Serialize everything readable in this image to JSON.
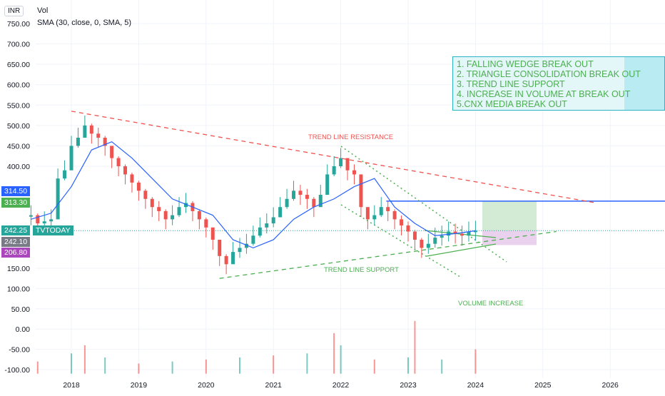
{
  "header": {
    "currency": "INR",
    "volume_label": "Vol",
    "sma_label": "SMA (30, close, 0, SMA, 5)"
  },
  "notes": [
    "1. FALLING WEDGE BREAK OUT",
    "2. TRIANGLE CONSOLIDATION BREAK OUT",
    "3. TREND LINE SUPPORT",
    "4. INCREASE IN VOLUME AT BREAK OUT",
    "5.CNX MEDIA BREAK OUT"
  ],
  "annotations": {
    "resistance": "TREND LINE RESISTANCE",
    "support": "TREND LINE SUPPORT",
    "volume": "VOLUME INCREASE"
  },
  "price_tags": {
    "upper_level": "314.50",
    "target": "313.30",
    "last": "242.25",
    "ticker": "TVTODAY",
    "sma": "242.10",
    "lower": "206.80"
  },
  "colors": {
    "up": "#26a69a",
    "down": "#ef5350",
    "sma": "#2962ff",
    "resistance": "#ef5350",
    "support": "#4caf50",
    "level": "#2962ff",
    "notes_text": "#4caf50",
    "target_zone": "#c8e6c9",
    "stop_zone": "#e1bee7",
    "tag_upper": "#2962ff",
    "tag_target": "#4caf50",
    "tag_last": "#26a69a",
    "tag_sma": "#787b86",
    "tag_lower": "#ab47bc"
  },
  "chart_data": {
    "type": "line",
    "title": "",
    "y_axis": {
      "ticks": [
        "750.00",
        "700.00",
        "650.00",
        "600.00",
        "550.00",
        "500.00",
        "450.00",
        "400.00",
        "150.00",
        "100.00",
        "50.00",
        "0.00",
        "-50.00",
        "-100.00"
      ],
      "range": [
        -110,
        760
      ]
    },
    "x_axis": {
      "ticks": [
        "2018",
        "2019",
        "2020",
        "2021",
        "2022",
        "2023",
        "2024",
        "2025",
        "2026"
      ]
    },
    "series": [
      {
        "style": "candles-close",
        "x": [
          2017.4,
          2017.5,
          2017.6,
          2017.7,
          2017.8,
          2017.9,
          2018.0,
          2018.1,
          2018.2,
          2018.3,
          2018.4,
          2018.5,
          2018.6,
          2018.7,
          2018.8,
          2018.9,
          2019.0,
          2019.1,
          2019.2,
          2019.3,
          2019.4,
          2019.5,
          2019.6,
          2019.7,
          2019.8,
          2019.9,
          2020.0,
          2020.1,
          2020.2,
          2020.3,
          2020.4,
          2020.5,
          2020.6,
          2020.7,
          2020.8,
          2020.9,
          2021.0,
          2021.1,
          2021.2,
          2021.3,
          2021.4,
          2021.5,
          2021.6,
          2021.7,
          2021.8,
          2021.9,
          2022.0,
          2022.1,
          2022.2,
          2022.3,
          2022.4,
          2022.5,
          2022.6,
          2022.7,
          2022.8,
          2022.9,
          2023.0,
          2023.1,
          2023.2,
          2023.3,
          2023.4,
          2023.5,
          2023.6,
          2023.7,
          2023.8,
          2023.9,
          2024.0
        ],
        "y": [
          280,
          260,
          265,
          270,
          370,
          390,
          450,
          470,
          500,
          480,
          470,
          450,
          420,
          400,
          380,
          360,
          340,
          320,
          300,
          290,
          270,
          280,
          300,
          310,
          290,
          270,
          250,
          220,
          180,
          160,
          190,
          200,
          210,
          230,
          250,
          260,
          275,
          300,
          320,
          340,
          330,
          320,
          300,
          330,
          380,
          400,
          420,
          390,
          380,
          300,
          270,
          280,
          300,
          290,
          270,
          255,
          240,
          220,
          200,
          210,
          225,
          230,
          240,
          235,
          230,
          240,
          242
        ]
      },
      {
        "name": "",
        "style": "sma",
        "x": [
          2017.4,
          2017.7,
          2018.0,
          2018.3,
          2018.6,
          2018.9,
          2019.2,
          2019.5,
          2019.8,
          2020.1,
          2020.4,
          2020.7,
          2021.0,
          2021.3,
          2021.6,
          2021.9,
          2022.2,
          2022.5,
          2022.8,
          2023.1,
          2023.4,
          2023.7,
          2024.0
        ],
        "y": [
          270,
          285,
          350,
          440,
          460,
          420,
          370,
          320,
          300,
          280,
          220,
          200,
          220,
          270,
          300,
          320,
          350,
          370,
          300,
          260,
          230,
          235,
          242
        ]
      },
      {
        "style": "volume",
        "x": [
          2017.5,
          2018.0,
          2018.2,
          2018.5,
          2019.0,
          2019.5,
          2020.0,
          2020.5,
          2021.0,
          2021.5,
          2021.9,
          2022.0,
          2022.5,
          2023.0,
          2023.1,
          2023.5,
          2024.0
        ],
        "y": [
          -80,
          -60,
          -40,
          -70,
          -85,
          -80,
          -75,
          -70,
          -65,
          -60,
          -10,
          -40,
          -75,
          -70,
          20,
          -75,
          -50
        ]
      }
    ],
    "lines": {
      "resistance": {
        "x": [
          2018.0,
          2025.8
        ],
        "y": [
          535,
          310
        ]
      },
      "support": {
        "x": [
          2020.2,
          2025.2
        ],
        "y": [
          125,
          240
        ]
      },
      "level": {
        "x": [
          2023.1,
          2026.6
        ],
        "y": [
          314.5,
          314.5
        ]
      }
    },
    "grid": true,
    "legend": "none"
  }
}
